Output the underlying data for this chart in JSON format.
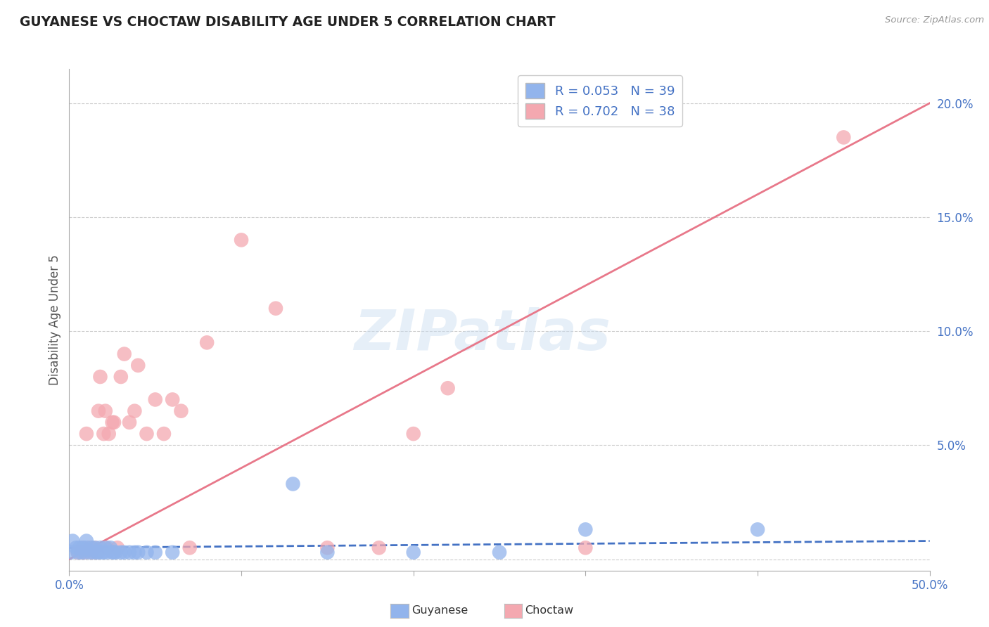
{
  "title": "GUYANESE VS CHOCTAW DISABILITY AGE UNDER 5 CORRELATION CHART",
  "source": "Source: ZipAtlas.com",
  "ylabel": "Disability Age Under 5",
  "xlim": [
    0.0,
    0.5
  ],
  "ylim": [
    -0.005,
    0.215
  ],
  "xticks": [
    0.0,
    0.1,
    0.2,
    0.3,
    0.4,
    0.5
  ],
  "xtick_labels_show": [
    "0.0%",
    "",
    "",
    "",
    "",
    "50.0%"
  ],
  "yticks": [
    0.0,
    0.05,
    0.1,
    0.15,
    0.2
  ],
  "ytick_labels": [
    "",
    "5.0%",
    "10.0%",
    "15.0%",
    "20.0%"
  ],
  "guyanese_color": "#92B4EC",
  "choctaw_color": "#F4A8B0",
  "guyanese_line_color": "#4472C4",
  "choctaw_line_color": "#E8788A",
  "R_guyanese": 0.053,
  "N_guyanese": 39,
  "R_choctaw": 0.702,
  "N_choctaw": 38,
  "background_color": "#FFFFFF",
  "grid_color": "#CCCCCC",
  "title_color": "#222222",
  "axis_label_color": "#555555",
  "tick_label_color": "#4472C4",
  "watermark_text": "ZIPatlas",
  "guyanese_points": [
    [
      0.001,
      0.003
    ],
    [
      0.002,
      0.008
    ],
    [
      0.004,
      0.005
    ],
    [
      0.005,
      0.003
    ],
    [
      0.006,
      0.005
    ],
    [
      0.007,
      0.003
    ],
    [
      0.008,
      0.005
    ],
    [
      0.009,
      0.003
    ],
    [
      0.01,
      0.005
    ],
    [
      0.01,
      0.008
    ],
    [
      0.012,
      0.003
    ],
    [
      0.013,
      0.005
    ],
    [
      0.014,
      0.003
    ],
    [
      0.015,
      0.005
    ],
    [
      0.016,
      0.003
    ],
    [
      0.017,
      0.003
    ],
    [
      0.018,
      0.005
    ],
    [
      0.019,
      0.003
    ],
    [
      0.02,
      0.003
    ],
    [
      0.021,
      0.005
    ],
    [
      0.022,
      0.003
    ],
    [
      0.024,
      0.005
    ],
    [
      0.025,
      0.003
    ],
    [
      0.026,
      0.003
    ],
    [
      0.027,
      0.003
    ],
    [
      0.03,
      0.003
    ],
    [
      0.032,
      0.003
    ],
    [
      0.035,
      0.003
    ],
    [
      0.038,
      0.003
    ],
    [
      0.04,
      0.003
    ],
    [
      0.045,
      0.003
    ],
    [
      0.05,
      0.003
    ],
    [
      0.06,
      0.003
    ],
    [
      0.13,
      0.033
    ],
    [
      0.15,
      0.003
    ],
    [
      0.2,
      0.003
    ],
    [
      0.25,
      0.003
    ],
    [
      0.3,
      0.013
    ],
    [
      0.4,
      0.013
    ]
  ],
  "choctaw_points": [
    [
      0.005,
      0.003
    ],
    [
      0.007,
      0.003
    ],
    [
      0.008,
      0.005
    ],
    [
      0.009,
      0.003
    ],
    [
      0.01,
      0.055
    ],
    [
      0.012,
      0.005
    ],
    [
      0.013,
      0.003
    ],
    [
      0.015,
      0.005
    ],
    [
      0.016,
      0.003
    ],
    [
      0.017,
      0.065
    ],
    [
      0.018,
      0.08
    ],
    [
      0.02,
      0.055
    ],
    [
      0.021,
      0.065
    ],
    [
      0.022,
      0.005
    ],
    [
      0.023,
      0.055
    ],
    [
      0.025,
      0.06
    ],
    [
      0.026,
      0.06
    ],
    [
      0.028,
      0.005
    ],
    [
      0.03,
      0.08
    ],
    [
      0.032,
      0.09
    ],
    [
      0.035,
      0.06
    ],
    [
      0.038,
      0.065
    ],
    [
      0.04,
      0.085
    ],
    [
      0.045,
      0.055
    ],
    [
      0.05,
      0.07
    ],
    [
      0.055,
      0.055
    ],
    [
      0.06,
      0.07
    ],
    [
      0.065,
      0.065
    ],
    [
      0.07,
      0.005
    ],
    [
      0.08,
      0.095
    ],
    [
      0.1,
      0.14
    ],
    [
      0.12,
      0.11
    ],
    [
      0.15,
      0.005
    ],
    [
      0.18,
      0.005
    ],
    [
      0.2,
      0.055
    ],
    [
      0.22,
      0.075
    ],
    [
      0.3,
      0.005
    ],
    [
      0.45,
      0.185
    ]
  ],
  "guyanese_line_x": [
    0.0,
    0.5
  ],
  "guyanese_line_y": [
    0.005,
    0.008
  ],
  "choctaw_line_x": [
    0.0,
    0.5
  ],
  "choctaw_line_y": [
    0.0,
    0.2
  ]
}
